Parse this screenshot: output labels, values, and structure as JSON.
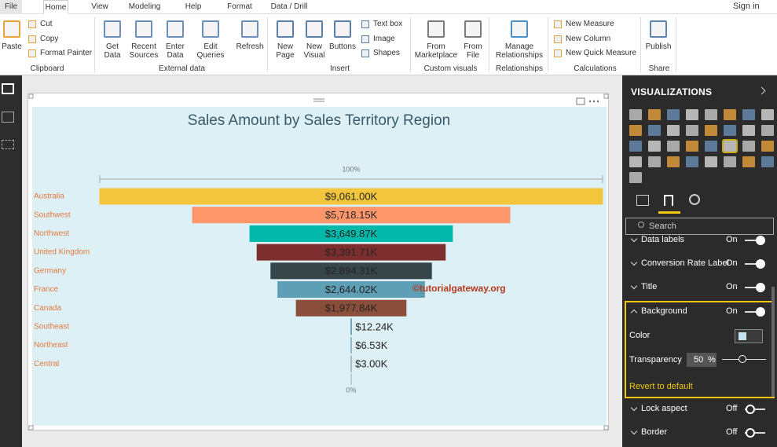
{
  "tabs": [
    "File",
    "Home",
    "View",
    "Modeling",
    "Help",
    "Format",
    "Data / Drill"
  ],
  "sign_in": "Sign in",
  "ribbon": {
    "groups": [
      {
        "name": "Clipboard",
        "buttons": [
          "Paste"
        ],
        "small": [
          "Cut",
          "Copy",
          "Format Painter"
        ]
      },
      {
        "name": "External data",
        "buttons": [
          "Get Data",
          "Recent Sources",
          "Enter Data",
          "Edit Queries",
          "Refresh"
        ]
      },
      {
        "name": "Insert",
        "buttons": [
          "New Page",
          "New Visual",
          "Buttons"
        ],
        "small": [
          "Text box",
          "Image",
          "Shapes"
        ]
      },
      {
        "name": "Custom visuals",
        "buttons": [
          "From Marketplace",
          "From File"
        ]
      },
      {
        "name": "Relationships",
        "buttons": [
          "Manage Relationships"
        ]
      },
      {
        "name": "Calculations",
        "small": [
          "New Measure",
          "New Column",
          "New Quick Measure"
        ]
      },
      {
        "name": "Share",
        "buttons": [
          "Publish"
        ]
      }
    ]
  },
  "pane": {
    "title": "VISUALIZATIONS",
    "search": "Search",
    "sections": [
      {
        "name": "Data labels",
        "state": "On"
      },
      {
        "name": "Conversion Rate Label",
        "state": "On"
      },
      {
        "name": "Title",
        "state": "On"
      },
      {
        "name": "Background",
        "state": "On"
      },
      {
        "name": "Lock aspect",
        "state": "Off"
      },
      {
        "name": "Border",
        "state": "Off"
      }
    ],
    "color": "Color",
    "transparency": "Transparency",
    "transparency_value": "50",
    "unit": "%",
    "revert": "Revert to default"
  },
  "chart_data": {
    "type": "funnel",
    "title": "Sales Amount by Sales Territory Region",
    "categories": [
      "Australia",
      "Southwest",
      "Northwest",
      "United Kingdom",
      "Germany",
      "France",
      "Canada",
      "Southeast",
      "Northeast",
      "Central"
    ],
    "values": [
      9061.0,
      5718.15,
      3649.87,
      3391.71,
      2894.31,
      2644.02,
      1977.84,
      12.24,
      6.53,
      3.0
    ],
    "value_labels": [
      "$9,061.00K",
      "$5,718.15K",
      "$3,649.87K",
      "$3,391.71K",
      "$2,894.31K",
      "$2,644.02K",
      "$1,977.84K",
      "$12.24K",
      "$6.53K",
      "$3.00K"
    ],
    "colors": [
      "#f2c53d",
      "#fd976b",
      "#01b8aa",
      "#7d2f2f",
      "#374649",
      "#5f9fb5",
      "#8a4f3a",
      "#6fa3b8",
      "#7fa7b5",
      "#9a9a9a"
    ],
    "top_rate_label": "100%",
    "bottom_rate_label": "0%",
    "watermark": "©tutorialgateway.org"
  }
}
